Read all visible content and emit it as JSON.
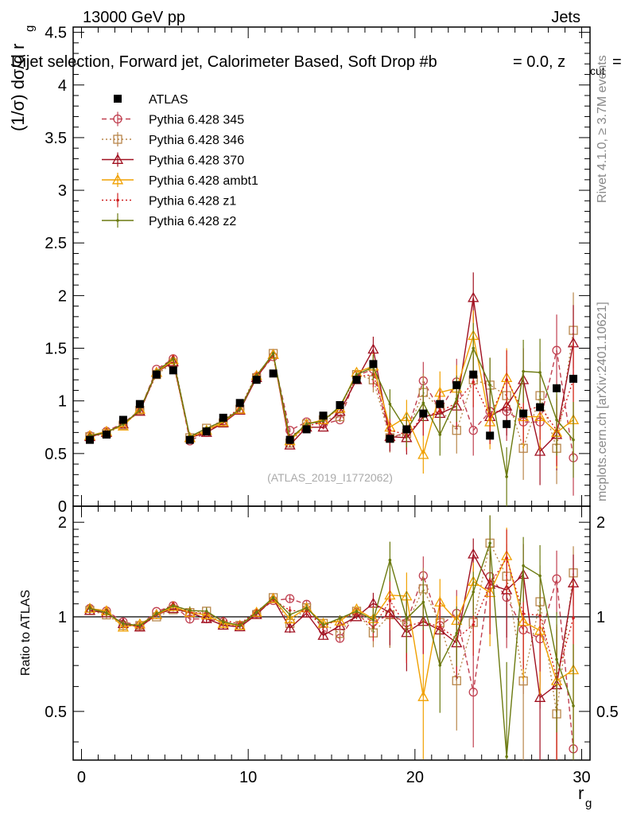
{
  "header": {
    "left": "13000 GeV pp",
    "right": "Jets",
    "title": "Dijet selection, Forward jet, Calorimeter Based, Soft Drop #b",
    "title_tail": "= 0.0, z",
    "title_sub": "cut",
    "title_end": "="
  },
  "side_labels": {
    "rivet": "Rivet 4.1.0, ≥ 3.7M events",
    "mcplots": "mcplots.cern.ch [arXiv:2401.10621]"
  },
  "analysis_id": "(ATLAS_2019_I1772062)",
  "chart_data": [
    {
      "type": "line",
      "panel": "main",
      "ylabel": "(1/σ) dσ/d r",
      "ylabel_sub": "g",
      "xlim": [
        -0.5,
        30.5
      ],
      "ylim": [
        0,
        4.55
      ],
      "yticks": [
        "0",
        "0.5",
        "1",
        "1.5",
        "2",
        "2.5",
        "3",
        "3.5",
        "4",
        "4.5"
      ],
      "ytick_values": [
        0,
        0.5,
        1,
        1.5,
        2,
        2.5,
        3,
        3.5,
        4,
        4.5
      ],
      "x": [
        0.5,
        1.5,
        2.5,
        3.5,
        4.5,
        5.5,
        6.5,
        7.5,
        8.5,
        9.5,
        10.5,
        11.5,
        12.5,
        13.5,
        14.5,
        15.5,
        16.5,
        17.5,
        18.5,
        19.5,
        20.5,
        21.5,
        22.5,
        23.5,
        24.5,
        25.5,
        26.5,
        27.5,
        28.5,
        29.5
      ],
      "series": [
        {
          "name": "ATLAS",
          "color": "#000000",
          "style": "data",
          "values": [
            0.63,
            0.68,
            0.82,
            0.97,
            1.25,
            1.29,
            0.63,
            0.71,
            0.84,
            0.98,
            1.2,
            1.26,
            0.63,
            0.73,
            0.86,
            0.96,
            1.2,
            1.35,
            0.64,
            0.73,
            0.88,
            0.97,
            1.15,
            1.25,
            0.67,
            0.78,
            0.88,
            0.94,
            1.12,
            1.21
          ]
        },
        {
          "name": "Pythia 6.428 345",
          "color": "#c04050",
          "style": "circle-dashed",
          "values": [
            0.67,
            0.71,
            0.79,
            0.91,
            1.3,
            1.4,
            0.62,
            0.7,
            0.81,
            0.92,
            1.23,
            1.42,
            0.72,
            0.8,
            0.78,
            0.82,
            1.24,
            1.3,
            0.65,
            0.7,
            1.19,
            0.91,
            1.18,
            0.72,
            0.9,
            0.9,
            0.8,
            0.8,
            1.48,
            0.46
          ]
        },
        {
          "name": "Pythia 6.428 346",
          "color": "#b8864a",
          "style": "square-dotted",
          "values": [
            0.66,
            0.69,
            0.77,
            0.91,
            1.25,
            1.36,
            0.65,
            0.74,
            0.79,
            0.92,
            1.22,
            1.45,
            0.6,
            0.78,
            0.82,
            0.85,
            1.25,
            1.2,
            0.65,
            0.69,
            1.08,
            0.93,
            0.72,
            1.2,
            1.15,
            1.05,
            0.55,
            1.05,
            0.55,
            1.67
          ]
        },
        {
          "name": "Pythia 6.428 370",
          "color": "#a01020",
          "style": "triangle-solid",
          "values": [
            0.66,
            0.7,
            0.78,
            0.9,
            1.27,
            1.37,
            0.65,
            0.7,
            0.79,
            0.91,
            1.22,
            1.44,
            0.58,
            0.75,
            0.75,
            0.9,
            1.2,
            1.49,
            0.66,
            0.65,
            0.85,
            0.88,
            0.95,
            1.98,
            0.85,
            0.95,
            1.2,
            0.52,
            0.68,
            1.55
          ]
        },
        {
          "name": "Pythia 6.428 ambt1",
          "color": "#f0a000",
          "style": "triangle-solid-open",
          "values": [
            0.67,
            0.71,
            0.76,
            0.92,
            1.27,
            1.39,
            0.65,
            0.72,
            0.8,
            0.92,
            1.24,
            1.44,
            0.62,
            0.78,
            0.82,
            0.93,
            1.27,
            1.33,
            0.75,
            0.85,
            0.49,
            1.08,
            1.12,
            1.62,
            0.8,
            1.22,
            0.85,
            0.85,
            0.7,
            0.82
          ]
        },
        {
          "name": "Pythia 6.428 z1",
          "color": "#d02020",
          "style": "dot-dotted",
          "values": [
            0.67,
            0.7,
            0.78,
            0.9,
            1.27,
            1.42,
            0.65,
            0.73,
            0.82,
            0.93,
            1.25,
            1.43,
            0.66,
            0.76,
            0.8,
            0.95,
            1.23,
            1.25,
            0.72,
            0.68,
            0.85,
            0.9,
            0.98,
            1.18,
            0.85,
            1.2,
            0.9,
            0.95,
            0.72,
            1.2
          ]
        },
        {
          "name": "Pythia 6.428 z2",
          "color": "#6b7a10",
          "style": "dot-solid",
          "values": [
            0.67,
            0.7,
            0.78,
            0.91,
            1.28,
            1.4,
            0.66,
            0.74,
            0.81,
            0.92,
            1.24,
            1.45,
            0.64,
            0.78,
            0.81,
            0.95,
            1.25,
            1.32,
            0.97,
            0.72,
            0.98,
            0.68,
            1.02,
            1.5,
            1.15,
            0.28,
            1.28,
            1.27,
            0.82,
            0.63
          ]
        }
      ]
    },
    {
      "type": "line",
      "panel": "ratio",
      "ylabel": "Ratio to ATLAS",
      "xlabel": "r",
      "xlabel_sub": "g",
      "xlim": [
        -0.5,
        30.5
      ],
      "ylim": [
        0.35,
        2.25
      ],
      "xticks": [
        "0",
        "10",
        "20",
        "30"
      ],
      "xtick_values": [
        0,
        10,
        20,
        30
      ],
      "yticks": [
        "0.5",
        "1",
        "2"
      ],
      "ytick_values": [
        0.5,
        1,
        2
      ],
      "reference": 1.0
    }
  ]
}
